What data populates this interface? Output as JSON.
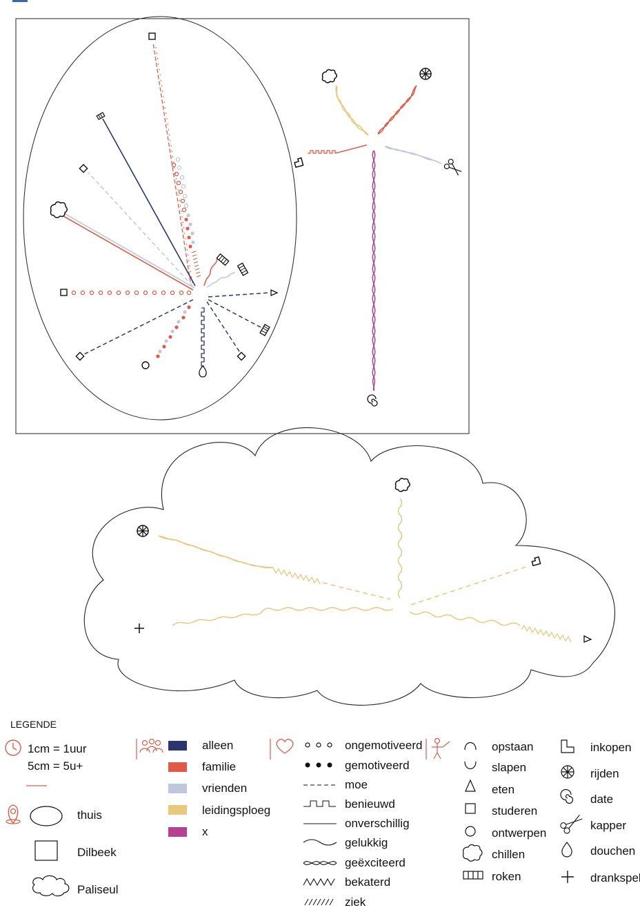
{
  "legend": {
    "title": "LEGENDE",
    "scale": {
      "line1": "1cm = 1uur",
      "line2": "5cm = 5u+"
    },
    "locations": [
      {
        "key": "thuis",
        "label": "thuis"
      },
      {
        "key": "dilbeek",
        "label": "Dilbeek"
      },
      {
        "key": "paliseul",
        "label": "Paliseul"
      }
    ],
    "company": [
      {
        "label": "alleen",
        "color": "#2b3470"
      },
      {
        "label": "familie",
        "color": "#e05a47"
      },
      {
        "label": "vrienden",
        "color": "#bfc8da"
      },
      {
        "label": "leidingsploeg",
        "color": "#e9c77b"
      },
      {
        "label": "x",
        "color": "#b44191"
      }
    ],
    "moods": [
      {
        "key": "open-dots",
        "label": "ongemotiveerd"
      },
      {
        "key": "filled-dots",
        "label": "gemotiveerd"
      },
      {
        "key": "dashed",
        "label": "moe"
      },
      {
        "key": "square-wave",
        "label": "benieuwd"
      },
      {
        "key": "solid",
        "label": "onverschillig"
      },
      {
        "key": "wave",
        "label": "gelukkig"
      },
      {
        "key": "twist",
        "label": "geëxciteerd"
      },
      {
        "key": "zigzag",
        "label": "bekaterd"
      },
      {
        "key": "hatch",
        "label": "ziek"
      }
    ],
    "activities_col1": [
      {
        "icon": "arch-up-icon",
        "label": "opstaan"
      },
      {
        "icon": "arch-down-icon",
        "label": "slapen"
      },
      {
        "icon": "triangle-icon",
        "label": "eten"
      },
      {
        "icon": "square-icon",
        "label": "studeren"
      },
      {
        "icon": "circle-icon",
        "label": "ontwerpen"
      },
      {
        "icon": "cloud-blob-icon",
        "label": "chillen"
      },
      {
        "icon": "cigarette-icon",
        "label": "roken"
      }
    ],
    "activities_col2": [
      {
        "icon": "l-shape-icon",
        "label": "inkopen"
      },
      {
        "icon": "wheel-icon",
        "label": "rijden"
      },
      {
        "icon": "spiral-icon",
        "label": "date"
      },
      {
        "icon": "scissors-icon",
        "label": "kapper"
      },
      {
        "icon": "drop-icon",
        "label": "douchen"
      },
      {
        "icon": "plus-icon",
        "label": "drankspel"
      }
    ]
  }
}
